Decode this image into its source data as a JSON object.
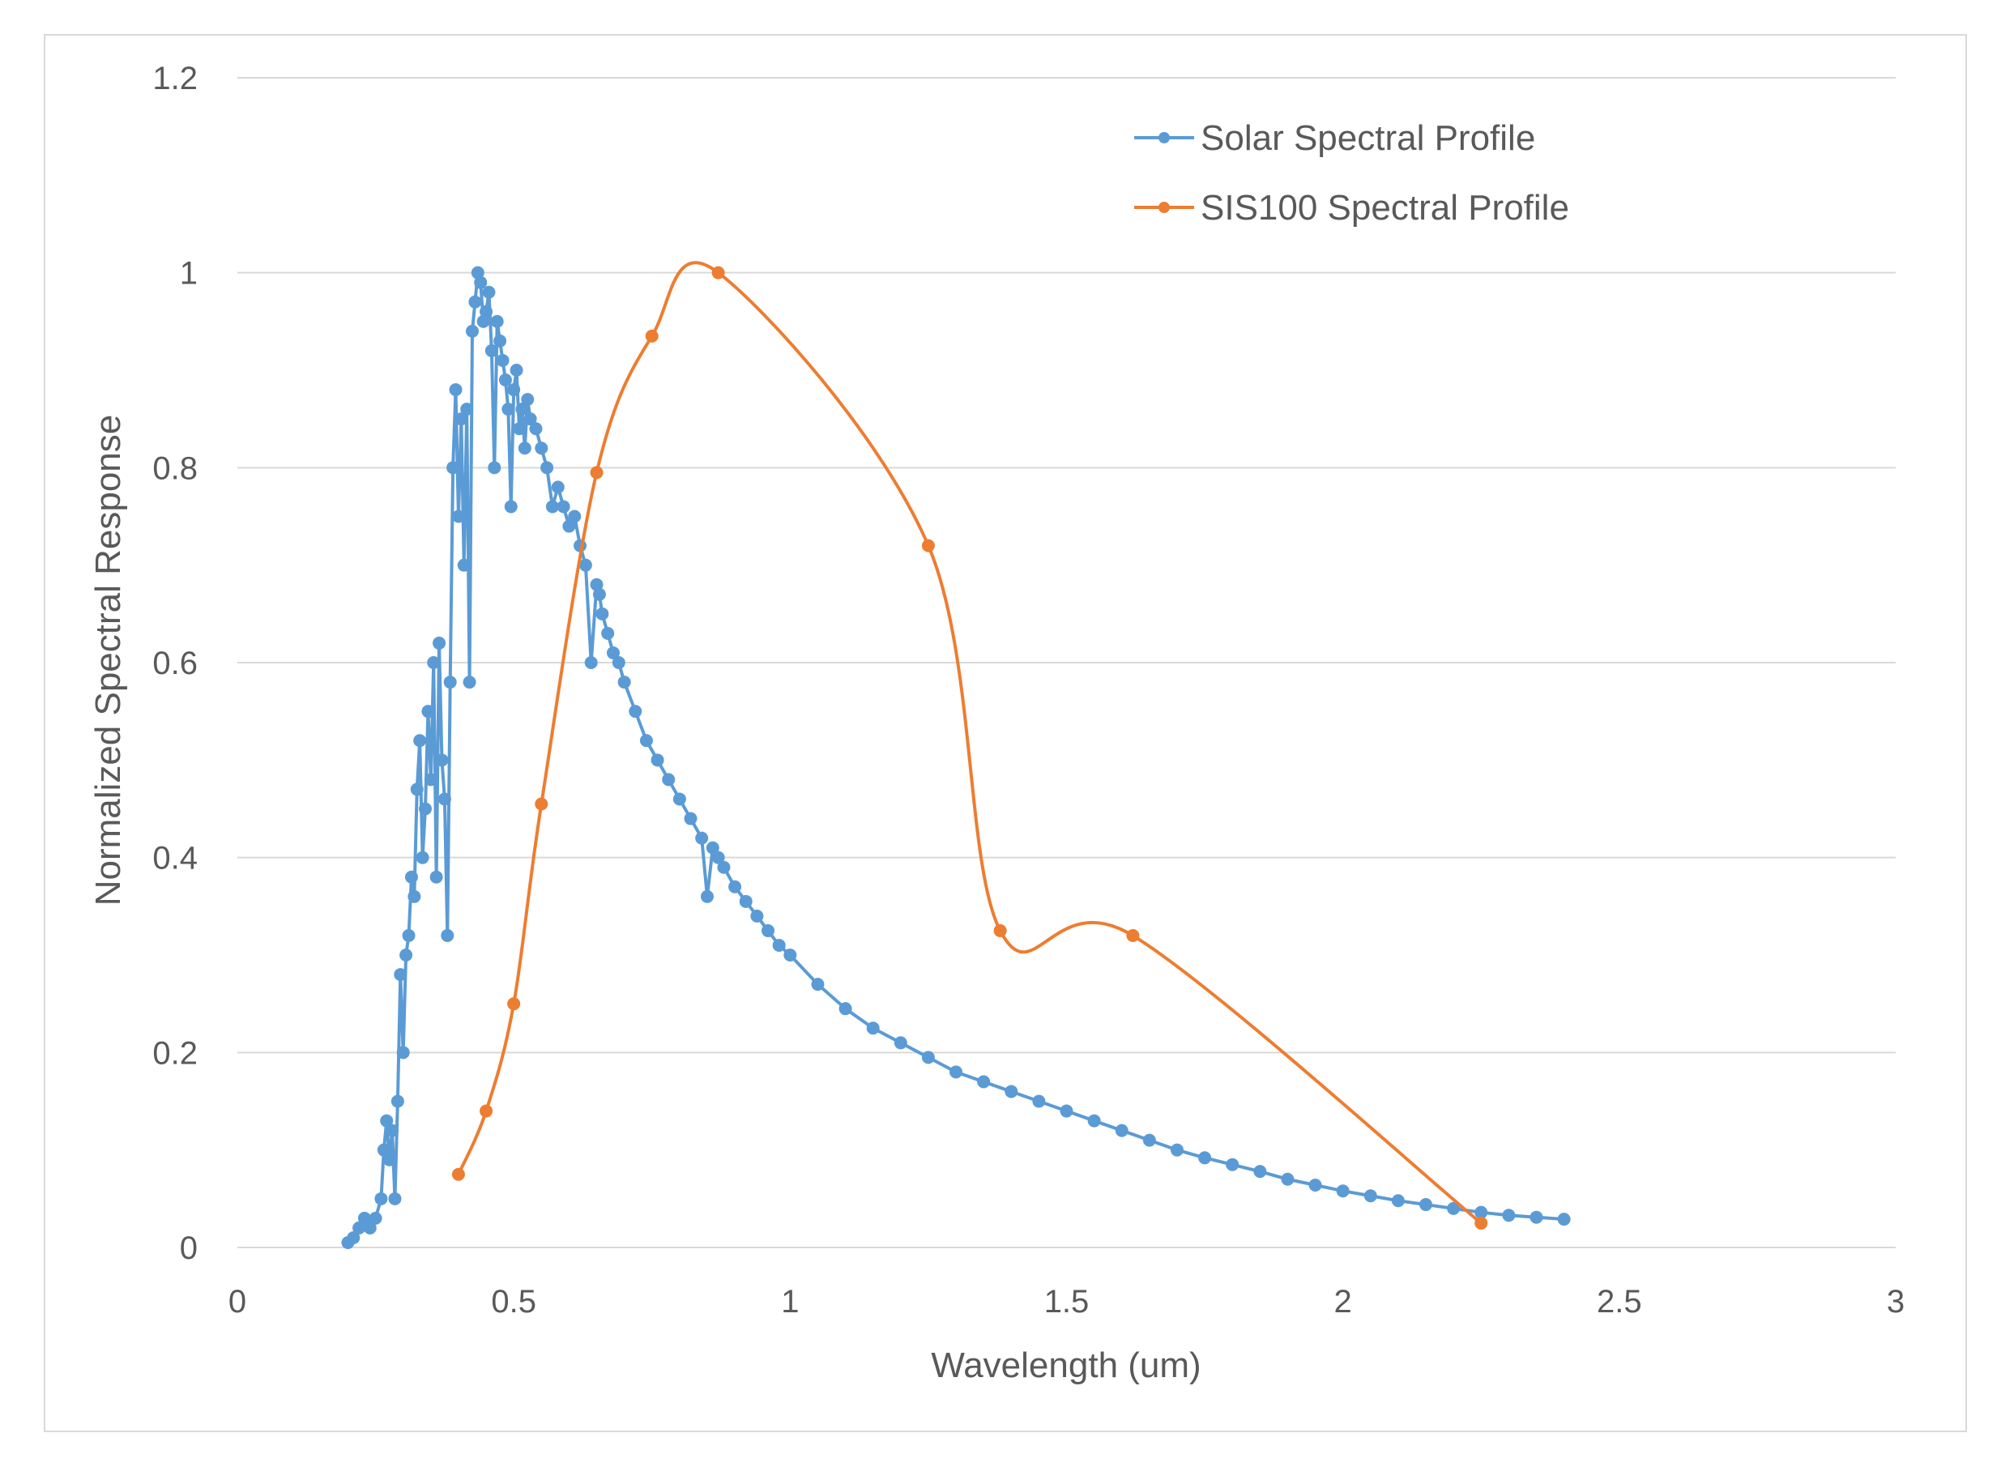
{
  "chart_data": {
    "type": "line",
    "title": "",
    "xlabel": "Wavelength (um)",
    "ylabel": "Normalized Spectral Response",
    "xlim": [
      0,
      3
    ],
    "ylim": [
      0,
      1.2
    ],
    "xticks": [
      0,
      0.5,
      1,
      1.5,
      2,
      2.5,
      3
    ],
    "xtick_labels": [
      "0",
      "0.5",
      "1",
      "1.5",
      "2",
      "2.5",
      "3"
    ],
    "yticks": [
      0,
      0.2,
      0.4,
      0.6,
      0.8,
      1,
      1.2
    ],
    "ytick_labels": [
      "0",
      "0.2",
      "0.4",
      "0.6",
      "0.8",
      "1",
      "1.2"
    ],
    "grid": "horizontal",
    "legend_position": "top-right",
    "series": [
      {
        "name": "Solar Spectral Profile",
        "color": "#5b9bd5",
        "marker": "circle",
        "smooth": false,
        "x": [
          0.2,
          0.21,
          0.22,
          0.23,
          0.24,
          0.25,
          0.26,
          0.265,
          0.27,
          0.275,
          0.28,
          0.285,
          0.29,
          0.295,
          0.3,
          0.305,
          0.31,
          0.315,
          0.32,
          0.325,
          0.33,
          0.335,
          0.34,
          0.345,
          0.35,
          0.355,
          0.36,
          0.365,
          0.37,
          0.375,
          0.38,
          0.385,
          0.39,
          0.395,
          0.4,
          0.405,
          0.41,
          0.415,
          0.42,
          0.425,
          0.43,
          0.435,
          0.44,
          0.445,
          0.45,
          0.455,
          0.46,
          0.465,
          0.47,
          0.475,
          0.48,
          0.485,
          0.49,
          0.495,
          0.5,
          0.505,
          0.51,
          0.515,
          0.52,
          0.525,
          0.53,
          0.54,
          0.55,
          0.56,
          0.57,
          0.58,
          0.59,
          0.6,
          0.61,
          0.62,
          0.63,
          0.64,
          0.65,
          0.655,
          0.66,
          0.67,
          0.68,
          0.69,
          0.7,
          0.72,
          0.74,
          0.76,
          0.78,
          0.8,
          0.82,
          0.84,
          0.85,
          0.86,
          0.87,
          0.88,
          0.9,
          0.92,
          0.94,
          0.96,
          0.98,
          1.0,
          1.05,
          1.1,
          1.15,
          1.2,
          1.25,
          1.3,
          1.35,
          1.4,
          1.45,
          1.5,
          1.55,
          1.6,
          1.65,
          1.7,
          1.75,
          1.8,
          1.85,
          1.9,
          1.95,
          2.0,
          2.05,
          2.1,
          2.15,
          2.2,
          2.25,
          2.3,
          2.35,
          2.4
        ],
        "y": [
          0.005,
          0.01,
          0.02,
          0.03,
          0.02,
          0.03,
          0.05,
          0.1,
          0.13,
          0.09,
          0.12,
          0.05,
          0.15,
          0.28,
          0.2,
          0.3,
          0.32,
          0.38,
          0.36,
          0.47,
          0.52,
          0.4,
          0.45,
          0.55,
          0.48,
          0.6,
          0.38,
          0.62,
          0.5,
          0.46,
          0.32,
          0.58,
          0.8,
          0.88,
          0.75,
          0.85,
          0.7,
          0.86,
          0.58,
          0.94,
          0.97,
          1.0,
          0.99,
          0.95,
          0.96,
          0.98,
          0.92,
          0.8,
          0.95,
          0.93,
          0.91,
          0.89,
          0.86,
          0.76,
          0.88,
          0.9,
          0.84,
          0.86,
          0.82,
          0.87,
          0.85,
          0.84,
          0.82,
          0.8,
          0.76,
          0.78,
          0.76,
          0.74,
          0.75,
          0.72,
          0.7,
          0.6,
          0.68,
          0.67,
          0.65,
          0.63,
          0.61,
          0.6,
          0.58,
          0.55,
          0.52,
          0.5,
          0.48,
          0.46,
          0.44,
          0.42,
          0.36,
          0.41,
          0.4,
          0.39,
          0.37,
          0.355,
          0.34,
          0.325,
          0.31,
          0.3,
          0.27,
          0.245,
          0.225,
          0.21,
          0.195,
          0.18,
          0.17,
          0.16,
          0.15,
          0.14,
          0.13,
          0.12,
          0.11,
          0.1,
          0.092,
          0.085,
          0.078,
          0.07,
          0.064,
          0.058,
          0.053,
          0.048,
          0.044,
          0.04,
          0.036,
          0.033,
          0.031,
          0.029
        ]
      },
      {
        "name": "SIS100 Spectral Profile",
        "color": "#ed7d31",
        "marker": "circle",
        "smooth": true,
        "x": [
          0.4,
          0.45,
          0.5,
          0.55,
          0.65,
          0.75,
          0.87,
          1.25,
          1.38,
          1.62,
          2.25
        ],
        "y": [
          0.075,
          0.14,
          0.25,
          0.455,
          0.795,
          0.935,
          1.0,
          0.72,
          0.325,
          0.32,
          0.025
        ]
      }
    ]
  }
}
